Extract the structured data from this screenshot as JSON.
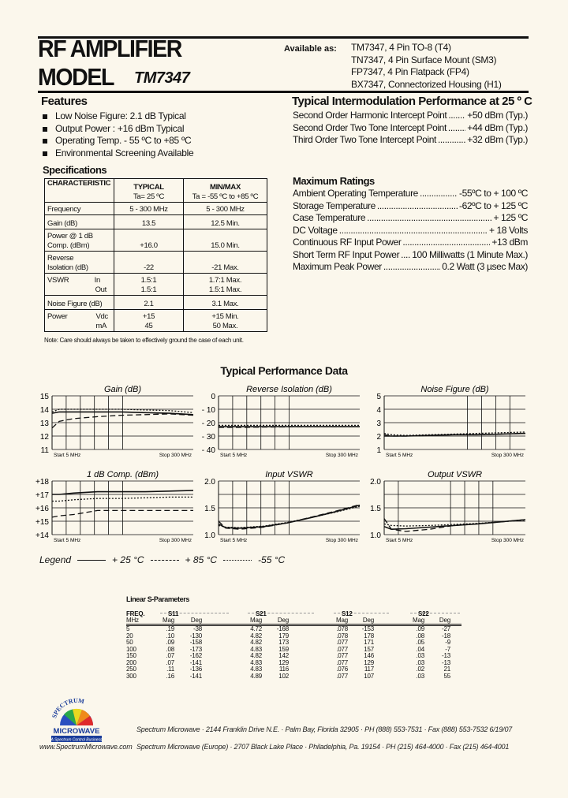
{
  "header": {
    "line1": "RF AMPLIFIER",
    "line2": "MODEL",
    "model": "TM7347"
  },
  "availability": {
    "label": "Available as:",
    "items": [
      "TM7347, 4 Pin TO-8 (T4)",
      "TN7347, 4 Pin Surface Mount (SM3)",
      "FP7347, 4 Pin Flatpack (FP4)",
      "BX7347, Connectorized Housing (H1)"
    ]
  },
  "features": {
    "title": "Features",
    "items": [
      "Low Noise Figure: 2.1 dB Typical",
      "Output Power : +16 dBm Typical",
      "Operating Temp. - 55 ºC to +85 ºC",
      "Environmental Screening Available"
    ]
  },
  "intermod": {
    "title": "Typical Intermodulation Performance at 25 º C",
    "rows": [
      {
        "label": "Second Order Harmonic Intercept Point",
        "value": "+50 dBm (Typ.)"
      },
      {
        "label": "Second Order Two Tone Intercept Point",
        "value": "+44 dBm (Typ.)"
      },
      {
        "label": "Third Order Two Tone Intercept Point",
        "value": "+32 dBm (Typ.)"
      }
    ]
  },
  "specs": {
    "title": "Specifications",
    "headers": {
      "characteristic": "CHARACTERISTIC",
      "typical": "TYPICAL",
      "typical_sub": "Ta= 25 ºC",
      "minmax": "MIN/MAX",
      "minmax_sub": "Ta = -55 ºC to +85 ºC"
    },
    "rows": [
      {
        "c1": "Frequency",
        "typ": "5 - 300 MHz",
        "mm": "5 - 300 MHz"
      },
      {
        "c1": "Gain (dB)",
        "typ": "13.5",
        "mm": "12.5 Min."
      },
      {
        "c1": "Power @ 1 dB",
        "c1b": "Comp. (dBm)",
        "typ": "+16.0",
        "mm": "15.0 Min."
      },
      {
        "c1": "Reverse",
        "c1b": "Isolation (dB)",
        "typ": "-22",
        "mm": "-21 Max."
      },
      {
        "c1": "VSWR",
        "s1": "In",
        "s2": "Out",
        "typ": "1.5:1",
        "typ2": "1.5:1",
        "mm": "1.7:1 Max.",
        "mm2": "1.5:1 Max."
      },
      {
        "c1": "Noise Figure (dB)",
        "typ": "2.1",
        "mm": "3.1 Max."
      },
      {
        "c1": "Power",
        "s1": "Vdc",
        "s2": "mA",
        "typ": "+15",
        "typ2": "45",
        "mm": "+15 Min.",
        "mm2": "50 Max."
      }
    ],
    "note": "Note: Care should always be taken to effectively ground the case of each unit."
  },
  "ratings": {
    "title": "Maximum Ratings",
    "rows": [
      {
        "label": "Ambient Operating Temperature",
        "value": "-55ºC to + 100 ºC"
      },
      {
        "label": "Storage Temperature",
        "value": "-62ºC to + 125 ºC"
      },
      {
        "label": "Case Temperature",
        "value": "+ 125 ºC"
      },
      {
        "label": "DC Voltage",
        "value": "+ 18 Volts"
      },
      {
        "label": "Continuous RF Input Power",
        "value": "+13 dBm"
      },
      {
        "label": "Short Term RF Input Power",
        "value": "100 Milliwatts (1 Minute Max.)"
      },
      {
        "label": "Maximum Peak Power",
        "value": "0.2 Watt (3 µsec Max)"
      }
    ]
  },
  "performance_title": "Typical Performance Data",
  "chart_data": [
    {
      "type": "line",
      "title": "Gain (dB)",
      "ylim": [
        11,
        15
      ],
      "yticks": [
        "15",
        "14",
        "13",
        "12",
        "11"
      ],
      "start_label": "Start 5 MHz",
      "stop_label": "Stop 300 MHz",
      "x": [
        5,
        20,
        50,
        100,
        150,
        200,
        250,
        300
      ],
      "series": [
        {
          "name": "+25 °C",
          "style": "solid",
          "values": [
            13.7,
            13.8,
            13.8,
            13.8,
            13.8,
            13.75,
            13.7,
            13.6
          ]
        },
        {
          "name": "+85 °C",
          "style": "dashed",
          "values": [
            12.6,
            13.1,
            13.3,
            13.45,
            13.55,
            13.6,
            13.65,
            13.55
          ]
        },
        {
          "name": "-55 °C",
          "style": "dotted",
          "values": [
            13.8,
            14.0,
            14.0,
            14.0,
            14.0,
            13.95,
            13.9,
            13.75
          ]
        }
      ]
    },
    {
      "type": "line",
      "title": "Reverse Isolation (dB)",
      "ylim": [
        -40,
        0
      ],
      "yticks": [
        "0",
        "- 10",
        "- 20",
        "- 30",
        "- 40"
      ],
      "start_label": "Start 5 MHz",
      "stop_label": "Stop 300 MHz",
      "x": [
        5,
        20,
        50,
        100,
        150,
        200,
        250,
        300
      ],
      "series": [
        {
          "name": "+25 °C",
          "style": "solid",
          "values": [
            -23,
            -23,
            -23,
            -23,
            -23,
            -23,
            -23,
            -23
          ]
        },
        {
          "name": "+85 °C",
          "style": "dashed",
          "values": [
            -23.5,
            -23.5,
            -23.5,
            -23.3,
            -23.2,
            -23,
            -23,
            -23
          ]
        },
        {
          "name": "-55 °C",
          "style": "dotted",
          "values": [
            -22,
            -22,
            -22,
            -22,
            -22,
            -22,
            -22,
            -22
          ]
        }
      ]
    },
    {
      "type": "line",
      "title": "Noise Figure (dB)",
      "ylim": [
        1,
        5
      ],
      "yticks": [
        "5",
        "4",
        "3",
        "2",
        "1"
      ],
      "start_label": "Start 5 MHz",
      "stop_label": "Stop 300 MHz",
      "x": [
        5,
        20,
        50,
        100,
        150,
        200,
        250,
        300
      ],
      "series": [
        {
          "name": "+25 °C",
          "style": "solid",
          "values": [
            2.0,
            2.0,
            2.0,
            2.05,
            2.1,
            2.1,
            2.15,
            2.2
          ]
        },
        {
          "name": "+85 °C",
          "style": "dashed",
          "values": [
            2.1,
            2.0,
            2.0,
            2.05,
            2.1,
            2.1,
            2.15,
            2.2
          ]
        },
        {
          "name": "-55 °C",
          "style": "dotted",
          "values": [
            2.2,
            2.1,
            2.05,
            2.1,
            2.15,
            2.2,
            2.25,
            2.3
          ]
        }
      ]
    },
    {
      "type": "line",
      "title": "1 dB Comp. (dBm)",
      "ylim": [
        14,
        18
      ],
      "yticks": [
        "+18",
        "+17",
        "+16",
        "+15",
        "+14"
      ],
      "start_label": "Start 5 MHz",
      "stop_label": "Stop 300 MHz",
      "x": [
        5,
        20,
        50,
        100,
        150,
        200,
        250,
        300
      ],
      "series": [
        {
          "name": "+25 °C",
          "style": "solid",
          "values": [
            17.0,
            17.0,
            17.1,
            17.2,
            17.2,
            17.2,
            17.25,
            17.3
          ]
        },
        {
          "name": "+85 °C",
          "style": "dashed",
          "values": [
            15.3,
            15.4,
            15.5,
            15.8,
            15.8,
            15.8,
            15.8,
            15.8
          ]
        },
        {
          "name": "-55 °C",
          "style": "dotted",
          "values": [
            16.5,
            16.5,
            16.6,
            16.7,
            16.7,
            16.75,
            16.8,
            16.8
          ]
        }
      ]
    },
    {
      "type": "line",
      "title": "Input VSWR",
      "ylim": [
        1.0,
        2.0
      ],
      "yticks": [
        "2.0",
        "",
        "1.5",
        "",
        "1.0"
      ],
      "start_label": "Start 5 MHz",
      "stop_label": "Stop 300 MHz",
      "x": [
        5,
        20,
        50,
        100,
        150,
        200,
        250,
        300
      ],
      "series": [
        {
          "name": "+25 °C",
          "style": "solid",
          "values": [
            1.2,
            1.13,
            1.12,
            1.15,
            1.22,
            1.32,
            1.43,
            1.55
          ]
        },
        {
          "name": "+85 °C",
          "style": "dashed",
          "values": [
            1.25,
            1.12,
            1.1,
            1.14,
            1.22,
            1.33,
            1.44,
            1.56
          ]
        },
        {
          "name": "-55 °C",
          "style": "dotted",
          "values": [
            1.17,
            1.14,
            1.13,
            1.16,
            1.23,
            1.32,
            1.42,
            1.53
          ]
        }
      ]
    },
    {
      "type": "line",
      "title": "Output VSWR",
      "ylim": [
        1.0,
        2.0
      ],
      "yticks": [
        "2.0",
        "",
        "1.5",
        "",
        "1.0"
      ],
      "start_label": "Start 5 MHz",
      "stop_label": "Stop 300 MHz",
      "x": [
        5,
        20,
        50,
        100,
        150,
        200,
        250,
        300
      ],
      "series": [
        {
          "name": "+25 °C",
          "style": "solid",
          "values": [
            1.15,
            1.1,
            1.11,
            1.14,
            1.17,
            1.2,
            1.24,
            1.28
          ]
        },
        {
          "name": "+85 °C",
          "style": "dashed",
          "values": [
            1.3,
            1.1,
            1.06,
            1.1,
            1.17,
            1.2,
            1.24,
            1.28
          ]
        },
        {
          "name": "-55 °C",
          "style": "dotted",
          "values": [
            1.2,
            1.17,
            1.16,
            1.17,
            1.19,
            1.21,
            1.24,
            1.27
          ]
        }
      ]
    }
  ],
  "legend": {
    "label": "Legend",
    "items": [
      "+ 25 °C",
      "+ 85 °C",
      "-55 °C"
    ]
  },
  "sparams": {
    "title": "Linear S-Parameters",
    "freq_label": "FREQ.",
    "freq_unit": "MHz",
    "groups": [
      "S11",
      "S21",
      "S12",
      "S22"
    ],
    "mag": "Mag",
    "deg": "Deg",
    "freq": [
      "5",
      "20",
      "50",
      "100",
      "150",
      "200",
      "250",
      "300"
    ],
    "s11_mag": [
      ".19",
      ".10",
      ".09",
      ".08",
      ".07",
      ".07",
      ".11",
      ".16"
    ],
    "s11_deg": [
      "-38",
      "-130",
      "-158",
      "-173",
      "-162",
      "-141",
      "-136",
      "-141"
    ],
    "s21_mag": [
      "4.72",
      "4.82",
      "4.82",
      "4.83",
      "4.82",
      "4.83",
      "4.83",
      "4.89"
    ],
    "s21_deg": [
      "-168",
      "179",
      "173",
      "159",
      "142",
      "129",
      "116",
      "102"
    ],
    "s12_mag": [
      ".078",
      ".078",
      ".077",
      ".077",
      ".077",
      ".077",
      ".076",
      ".077"
    ],
    "s12_deg": [
      "-153",
      "178",
      "171",
      "157",
      "146",
      "129",
      "117",
      "107"
    ],
    "s22_mag": [
      ".09",
      ".08",
      ".05",
      ".04",
      ".03",
      ".03",
      ".02",
      ".03"
    ],
    "s22_deg": [
      "-27",
      "-18",
      "-9",
      "-7",
      "-13",
      "-13",
      "21",
      "55"
    ]
  },
  "logo": {
    "top": "SPECTRUM",
    "main": "MICROWAVE",
    "tagline": "A Spectrum Control Business"
  },
  "footer": {
    "line1": "Spectrum Microwave · 2144 Franklin Drive N.E. · Palm Bay, Florida 32905 · PH (888) 553-7531 · Fax (888) 553-7532  6/19/07",
    "website": "www.SpectrumMicrowave.com",
    "line2": "Spectrum Microwave (Europe) · 2707 Black Lake Place · Philadelphia, Pa. 19154 · PH (215) 464-4000 · Fax (215) 464-4001"
  },
  "colors": {
    "background": "#fbf7ec",
    "ink": "#111111",
    "logo_blue": "#1a3c9a"
  }
}
